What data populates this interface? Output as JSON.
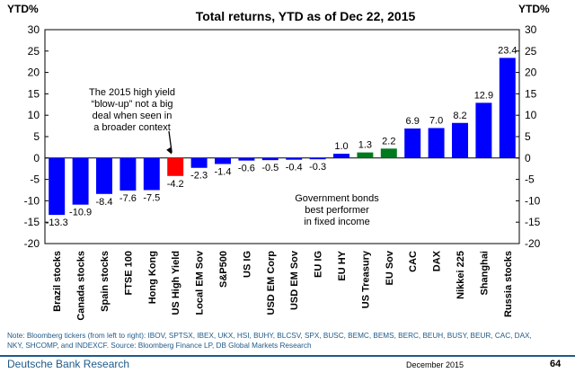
{
  "chart_data": {
    "type": "bar",
    "title": "Total returns, YTD as of Dec 22, 2015",
    "ylabel_left": "YTD%",
    "ylabel_right": "YTD%",
    "ylim": [
      -20,
      30
    ],
    "yticks": [
      30,
      25,
      20,
      15,
      10,
      5,
      0,
      -5,
      -10,
      -15,
      -20
    ],
    "categories": [
      "Brazil stocks",
      "Canada stocks",
      "Spain stocks",
      "FTSE 100",
      "Hong Kong",
      "US High Yield",
      "Local EM Sov",
      "S&P500",
      "US IG",
      "USD EM Corp",
      "USD EM Sov",
      "EU IG",
      "EU HY",
      "US Treasury",
      "EU Sov",
      "CAC",
      "DAX",
      "Nikkei 225",
      "Shanghai",
      "Russia stocks"
    ],
    "values": [
      -13.3,
      -10.9,
      -8.4,
      -7.6,
      -7.5,
      -4.2,
      -2.3,
      -1.4,
      -0.6,
      -0.5,
      -0.4,
      -0.3,
      1.0,
      1.3,
      2.2,
      6.9,
      7.0,
      8.2,
      12.9,
      23.4
    ],
    "data_labels": [
      "-13.3",
      "-10.9",
      "-8.4",
      "-7.6",
      "-7.5",
      "-4.2",
      "-2.3",
      "-1.4",
      "-0.6",
      "-0.5",
      "-0.4",
      "-0.3",
      "1.0",
      "1.3",
      "2.2",
      "6.9",
      "7.0",
      "8.2",
      "12.9",
      "23.4"
    ],
    "bar_colors": [
      "#0000ff",
      "#0000ff",
      "#0000ff",
      "#0000ff",
      "#0000ff",
      "#ff0000",
      "#0000ff",
      "#0000ff",
      "#0000ff",
      "#0000ff",
      "#0000ff",
      "#0000ff",
      "#0000ff",
      "#007a1e",
      "#007a1e",
      "#0000ff",
      "#0000ff",
      "#0000ff",
      "#0000ff",
      "#0000ff"
    ],
    "annotations": {
      "high_yield": [
        "The 2015 high yield",
        "“blow-up” not a big",
        "deal when seen in",
        "a broader context"
      ],
      "govt_bonds": [
        "Government bonds",
        "best performer",
        "in fixed income"
      ]
    }
  },
  "note": "Note: Bloomberg  tickers (from left to right): IBOV, SPTSX, IBEX, UKX, HSI, BUHY, BLCSV, SPX, BUSC, BEMC, BEMS, BERC, BEUH, BUSY, BEUR, CAC, DAX, NKY, SHCOMP, and INDEXCF. Source: Bloomberg Finance LP, DB Global Markets Research",
  "footer": {
    "publisher": "Deutsche Bank Research",
    "date": "December 2015",
    "page": "64"
  }
}
